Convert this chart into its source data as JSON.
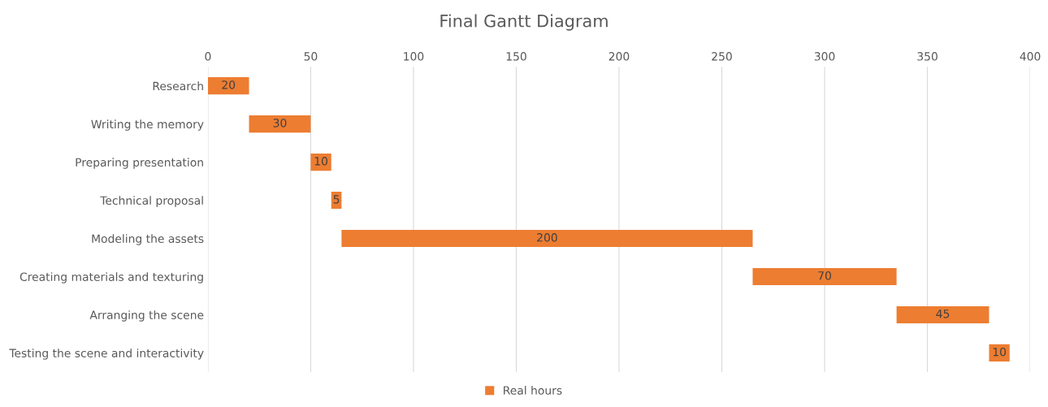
{
  "chart_data": {
    "type": "bar",
    "orientation": "horizontal",
    "title": "Final Gantt Diagram",
    "categories": [
      "Research",
      "Writing the memory",
      "Preparing presentation",
      "Technical proposal",
      "Modeling the assets",
      "Creating materials and texturing",
      "Arranging the scene",
      "Testing the scene and interactivity"
    ],
    "series": [
      {
        "name": "Real hours",
        "color": "#ed7d31",
        "values": [
          20,
          30,
          10,
          5,
          200,
          70,
          45,
          10
        ],
        "base": [
          0,
          20,
          50,
          60,
          65,
          265,
          335,
          380
        ]
      }
    ],
    "xlim": [
      0,
      400
    ],
    "xticks": [
      0,
      50,
      100,
      150,
      200,
      250,
      300,
      350,
      400
    ],
    "grid": "x",
    "legend": "bottom",
    "data_labels": true
  }
}
